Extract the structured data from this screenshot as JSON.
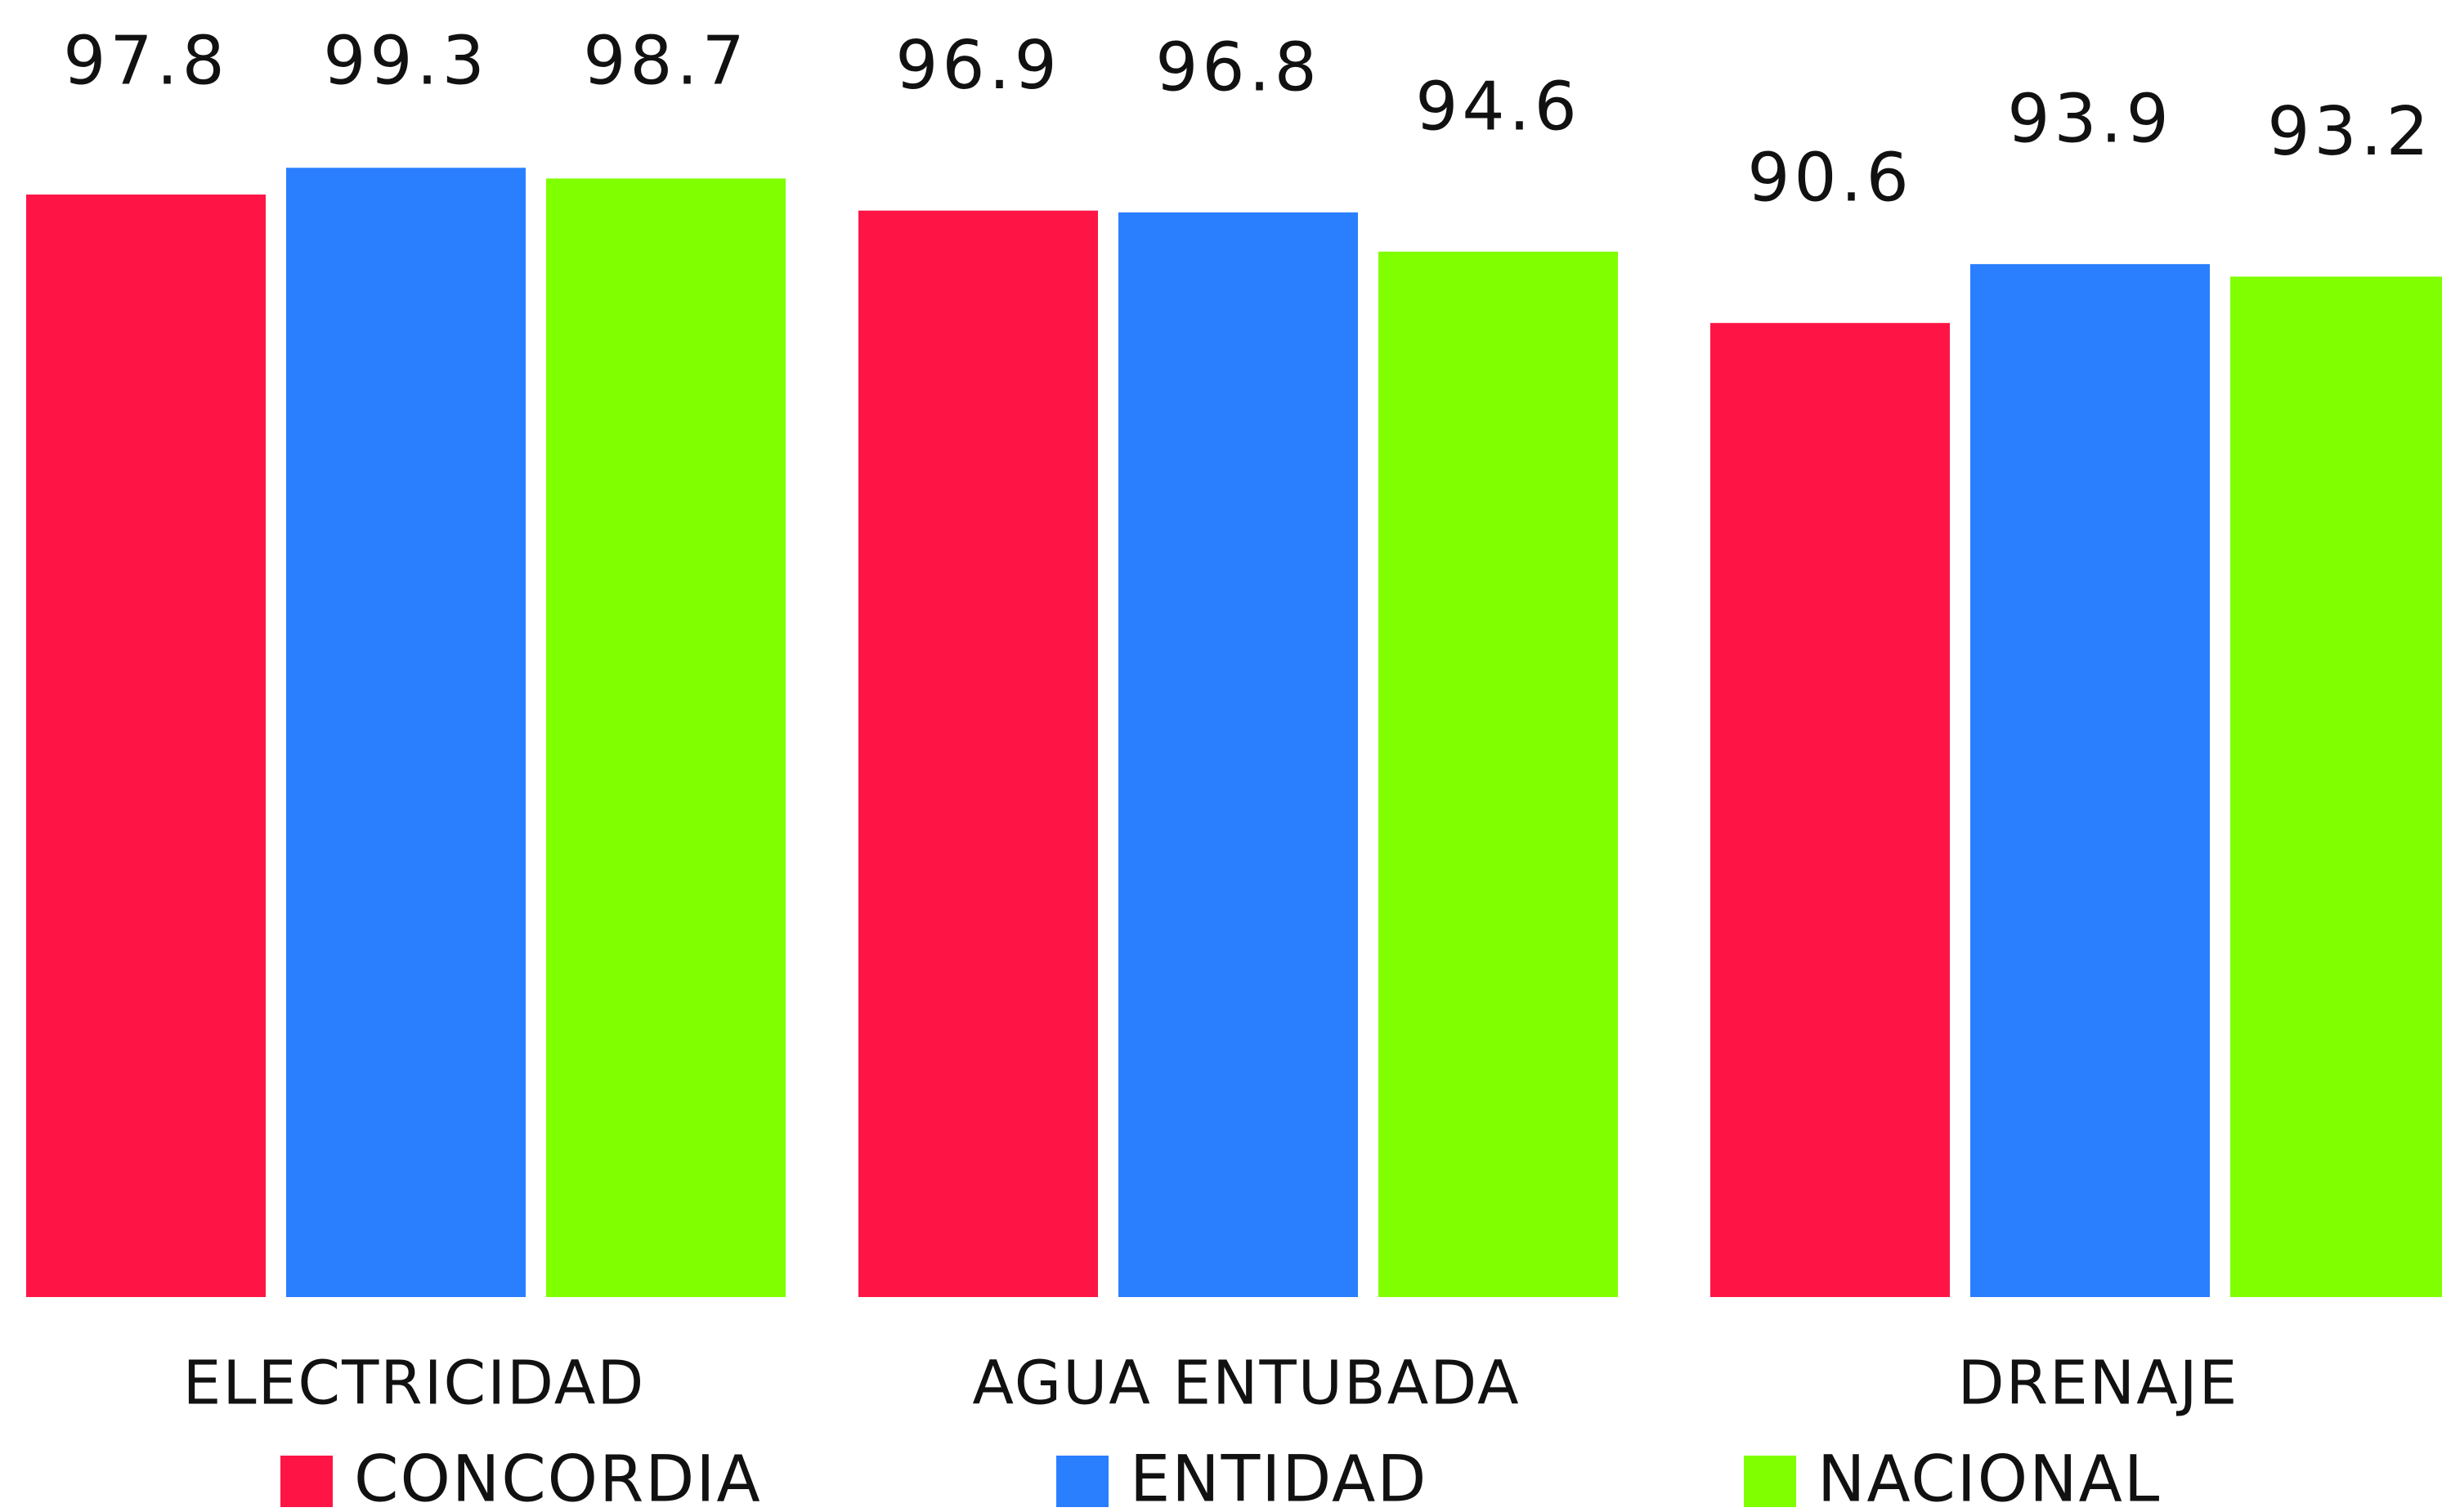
{
  "chart_data": {
    "type": "bar",
    "categories": [
      "ELECTRICIDAD",
      "AGUA ENTUBADA",
      "DRENAJE"
    ],
    "series": [
      {
        "name": "CONCORDIA",
        "color": "#fe1545",
        "values": [
          97.8,
          96.9,
          90.6
        ]
      },
      {
        "name": "ENTIDAD",
        "color": "#2a7fff",
        "values": [
          99.3,
          96.8,
          93.9
        ]
      },
      {
        "name": "NACIONAL",
        "color": "#80ff00",
        "values": [
          98.7,
          94.6,
          93.2
        ]
      }
    ],
    "ylim": [
      36,
      100
    ]
  }
}
